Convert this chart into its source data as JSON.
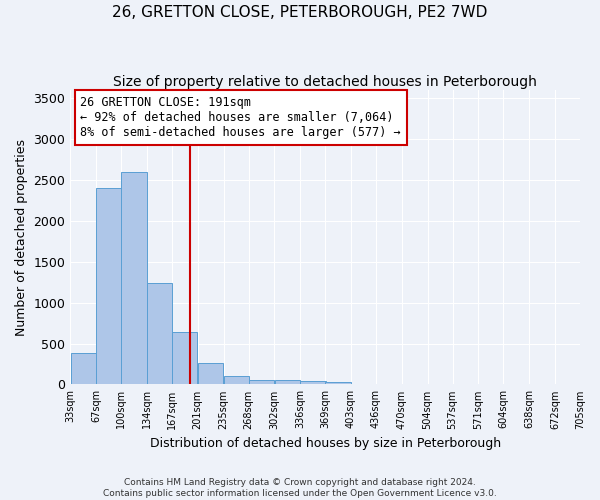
{
  "title1": "26, GRETTON CLOSE, PETERBOROUGH, PE2 7WD",
  "title2": "Size of property relative to detached houses in Peterborough",
  "xlabel": "Distribution of detached houses by size in Peterborough",
  "ylabel": "Number of detached properties",
  "footer1": "Contains HM Land Registry data © Crown copyright and database right 2024.",
  "footer2": "Contains public sector information licensed under the Open Government Licence v3.0.",
  "bins": [
    33,
    67,
    100,
    134,
    167,
    201,
    235,
    268,
    302,
    336,
    369,
    403,
    436,
    470,
    504,
    537,
    571,
    604,
    638,
    672,
    705
  ],
  "values": [
    380,
    2400,
    2600,
    1240,
    640,
    260,
    100,
    60,
    60,
    40,
    30,
    0,
    0,
    0,
    0,
    0,
    0,
    0,
    0,
    0
  ],
  "bar_color": "#aec6e8",
  "bar_edge_color": "#5a9fd4",
  "red_line_x": 191,
  "annotation_line1": "26 GRETTON CLOSE: 191sqm",
  "annotation_line2": "← 92% of detached houses are smaller (7,064)",
  "annotation_line3": "8% of semi-detached houses are larger (577) →",
  "annotation_box_color": "#ffffff",
  "annotation_box_edge": "#cc0000",
  "red_line_color": "#cc0000",
  "ylim": [
    0,
    3600
  ],
  "yticks": [
    0,
    500,
    1000,
    1500,
    2000,
    2500,
    3000,
    3500
  ],
  "bg_color": "#eef2f9",
  "grid_color": "#ffffff",
  "title1_fontsize": 11,
  "title2_fontsize": 10,
  "fig_width": 6.0,
  "fig_height": 5.0,
  "dpi": 100
}
